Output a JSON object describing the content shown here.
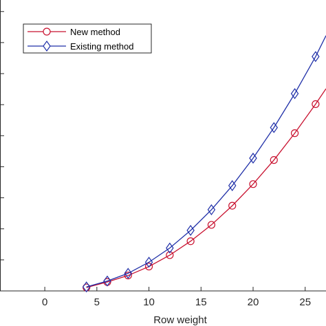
{
  "chart_data": {
    "type": "line",
    "title": "",
    "xlabel": "Row weight",
    "ylabel": "",
    "xlim": [
      0,
      27
    ],
    "x_ticks": [
      0,
      5,
      10,
      15,
      20,
      25
    ],
    "x_tick_labels": [
      "0",
      "5",
      "10",
      "15",
      "20",
      "25"
    ],
    "y_ticks_visible_labels": false,
    "grid": false,
    "legend_position": "top-left",
    "x": [
      4,
      6,
      8,
      10,
      12,
      14,
      16,
      18,
      20,
      22,
      24,
      26
    ],
    "series": [
      {
        "name": "New method",
        "color": "#c8102e",
        "marker": "circle",
        "values": [
          0.011,
          0.029,
          0.05,
          0.079,
          0.116,
          0.161,
          0.214,
          0.276,
          0.346,
          0.424,
          0.511,
          0.605
        ],
        "extension": {
          "x": 27,
          "y": 0.655
        }
      },
      {
        "name": "Existing method",
        "color": "#1f2fa8",
        "marker": "diamond",
        "values": [
          0.013,
          0.032,
          0.057,
          0.093,
          0.139,
          0.196,
          0.263,
          0.341,
          0.43,
          0.529,
          0.639,
          0.759
        ],
        "extension": {
          "x": 27,
          "y": 0.827
        }
      }
    ],
    "y_range": [
      0,
      0.92
    ]
  }
}
